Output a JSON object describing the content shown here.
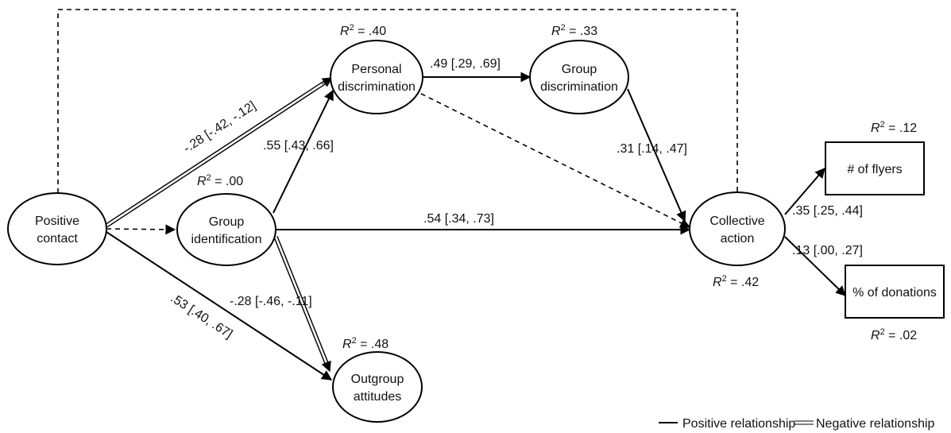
{
  "nodes": {
    "positive_contact": {
      "line1": "Positive",
      "line2": "contact"
    },
    "group_identification": {
      "line1": "Group",
      "line2": "identification"
    },
    "personal_discrimination": {
      "line1": "Personal",
      "line2": "discrimination"
    },
    "group_discrimination": {
      "line1": "Group",
      "line2": "discrimination"
    },
    "outgroup_attitudes": {
      "line1": "Outgroup",
      "line2": "attitudes"
    },
    "collective_action": {
      "line1": "Collective",
      "line2": "action"
    },
    "flyers": {
      "label": "# of flyers"
    },
    "donations": {
      "label": "% of donations"
    }
  },
  "r_squared": {
    "personal_discrimination": ".40",
    "group_discrimination": ".33",
    "group_identification": ".00",
    "outgroup_attitudes": ".48",
    "collective_action": ".42",
    "flyers": ".12",
    "donations": ".02",
    "prefix": "R",
    "exponent": "2",
    "equals": " = "
  },
  "edges": {
    "contact_to_personal": "-.28 [-.42, -.12]",
    "personal_to_group": ".49 [.29, .69]",
    "identification_to_personal": ".55 [.43, .66]",
    "group_to_action": ".31 [.14, .47]",
    "identification_to_action": ".54 [.34, .73]",
    "identification_to_outgroup": "-.28 [-.46, -.11]",
    "contact_to_outgroup": ".53 [.40, .67]",
    "action_to_flyers": ".35 [.25, .44]",
    "action_to_donations": ".13 [.00, .27]"
  },
  "legend": {
    "positive": "Positive relationship",
    "negative": "Negative relationship"
  }
}
